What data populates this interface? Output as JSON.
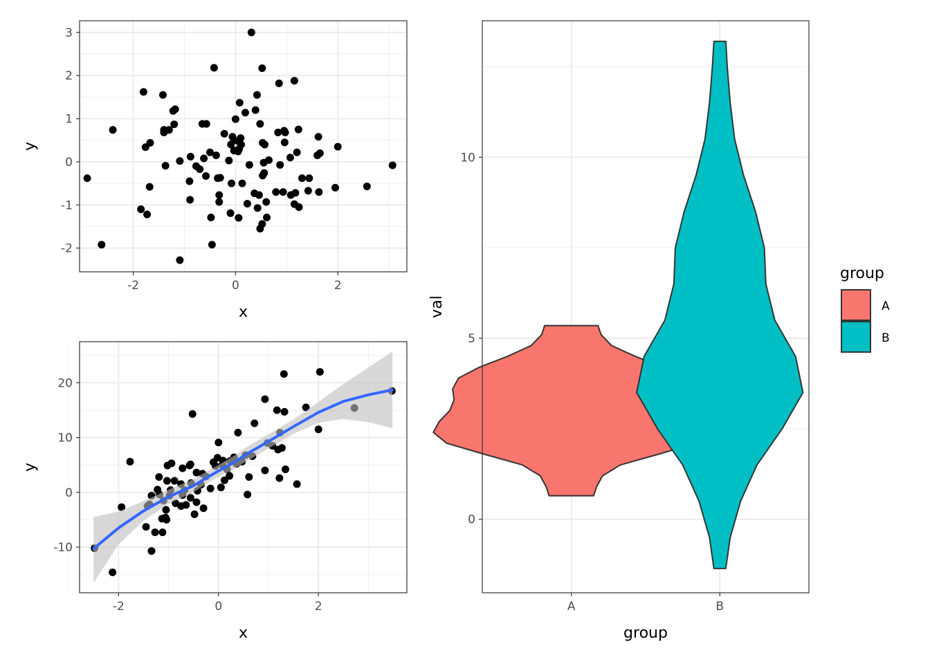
{
  "chart_data": [
    {
      "type": "scatter",
      "xlabel": "x",
      "ylabel": "y",
      "xlim": [
        -3.05,
        3.35
      ],
      "ylim": [
        -2.55,
        3.27
      ],
      "x_ticks": [
        -2,
        0,
        2
      ],
      "y_ticks": [
        -2,
        -1,
        0,
        1,
        2,
        3
      ],
      "x_tick_labels": [
        "-2",
        "0",
        "2"
      ],
      "y_tick_labels": [
        "-2",
        "-1",
        "0",
        "1",
        "2",
        "3"
      ],
      "grid": true,
      "point_color": "#000000",
      "points": [
        [
          0.31,
          3.0
        ],
        [
          -0.42,
          2.18
        ],
        [
          0.52,
          2.17
        ],
        [
          1.15,
          1.88
        ],
        [
          0.85,
          1.82
        ],
        [
          -1.8,
          1.62
        ],
        [
          -1.42,
          1.55
        ],
        [
          0.42,
          1.55
        ],
        [
          0.08,
          1.37
        ],
        [
          -1.18,
          1.22
        ],
        [
          -1.22,
          1.18
        ],
        [
          0.39,
          1.2
        ],
        [
          0.19,
          1.14
        ],
        [
          0.0,
          0.99
        ],
        [
          0.48,
          0.88
        ],
        [
          -0.65,
          0.88
        ],
        [
          -0.57,
          0.88
        ],
        [
          -1.2,
          0.87
        ],
        [
          -2.4,
          0.74
        ],
        [
          -1.4,
          0.74
        ],
        [
          -1.3,
          0.74
        ],
        [
          1.23,
          0.75
        ],
        [
          0.95,
          0.72
        ],
        [
          0.97,
          0.68
        ],
        [
          -1.4,
          0.68
        ],
        [
          -0.22,
          0.65
        ],
        [
          0.83,
          0.68
        ],
        [
          -0.06,
          0.58
        ],
        [
          0.1,
          0.55
        ],
        [
          1.62,
          0.58
        ],
        [
          -0.03,
          0.5
        ],
        [
          0.05,
          0.48
        ],
        [
          -1.67,
          0.44
        ],
        [
          0.53,
          0.44
        ],
        [
          0.96,
          0.45
        ],
        [
          -0.09,
          0.4
        ],
        [
          0.11,
          0.4
        ],
        [
          -1.76,
          0.34
        ],
        [
          0.07,
          0.3
        ],
        [
          0.57,
          0.4
        ],
        [
          2.0,
          0.35
        ],
        [
          -0.03,
          0.26
        ],
        [
          0.05,
          0.24
        ],
        [
          -0.5,
          0.22
        ],
        [
          1.2,
          0.22
        ],
        [
          1.65,
          0.2
        ],
        [
          1.6,
          0.15
        ],
        [
          -0.38,
          0.15
        ],
        [
          1.07,
          0.1
        ],
        [
          -0.88,
          0.12
        ],
        [
          -0.62,
          0.08
        ],
        [
          0.65,
          0.04
        ],
        [
          -1.09,
          0.02
        ],
        [
          -0.13,
          0.03
        ],
        [
          0.55,
          -0.02
        ],
        [
          0.27,
          -0.07
        ],
        [
          0.87,
          -0.07
        ],
        [
          3.07,
          -0.08
        ],
        [
          -1.37,
          -0.09
        ],
        [
          -0.77,
          -0.1
        ],
        [
          -0.7,
          -0.17
        ],
        [
          1.95,
          -0.6
        ],
        [
          -2.9,
          -0.38
        ],
        [
          -0.3,
          -0.37
        ],
        [
          -0.58,
          -0.33
        ],
        [
          0.53,
          -0.32
        ],
        [
          0.56,
          -0.26
        ],
        [
          -0.9,
          -0.45
        ],
        [
          -0.35,
          -0.38
        ],
        [
          -0.08,
          -0.5
        ],
        [
          0.13,
          -0.5
        ],
        [
          -1.68,
          -0.58
        ],
        [
          2.57,
          -0.57
        ],
        [
          1.3,
          -0.38
        ],
        [
          1.44,
          -0.38
        ],
        [
          1.42,
          -0.67
        ],
        [
          1.63,
          -0.7
        ],
        [
          0.79,
          -0.7
        ],
        [
          0.93,
          -0.7
        ],
        [
          0.37,
          -0.73
        ],
        [
          1.17,
          -0.72
        ],
        [
          1.08,
          -0.77
        ],
        [
          0.46,
          -0.77
        ],
        [
          -0.32,
          -0.77
        ],
        [
          -0.89,
          -0.88
        ],
        [
          -0.32,
          -0.93
        ],
        [
          0.6,
          -0.93
        ],
        [
          1.15,
          -0.98
        ],
        [
          1.24,
          -1.05
        ],
        [
          0.23,
          -0.97
        ],
        [
          0.43,
          -1.07
        ],
        [
          -1.85,
          -1.1
        ],
        [
          -0.1,
          -1.19
        ],
        [
          -1.73,
          -1.22
        ],
        [
          0.06,
          -1.3
        ],
        [
          -0.48,
          -1.29
        ],
        [
          0.61,
          -1.29
        ],
        [
          0.52,
          -1.44
        ],
        [
          0.48,
          -1.55
        ],
        [
          -2.62,
          -1.92
        ],
        [
          -0.46,
          -1.92
        ],
        [
          -1.09,
          -2.28
        ]
      ]
    },
    {
      "type": "scatter",
      "xlabel": "x",
      "ylabel": "y",
      "xlim": [
        -2.78,
        3.77
      ],
      "ylim": [
        -18.33,
        27.5
      ],
      "x_ticks": [
        -2,
        0,
        2
      ],
      "y_ticks": [
        -10,
        0,
        10,
        20
      ],
      "x_tick_labels": [
        "-2",
        "0",
        "2"
      ],
      "y_tick_labels": [
        "-10",
        "0",
        "10",
        "20"
      ],
      "grid": true,
      "point_color": "#000000",
      "smooth": {
        "color": "#3366ff",
        "band_color": "#bebebe",
        "fit": [
          [
            -2.5,
            -10.3
          ],
          [
            -2.0,
            -6.5
          ],
          [
            -1.5,
            -3.4
          ],
          [
            -1.0,
            -0.8
          ],
          [
            -0.5,
            1.2
          ],
          [
            -0.25,
            2.6
          ],
          [
            0.0,
            3.9
          ],
          [
            0.3,
            5.4
          ],
          [
            0.6,
            7.2
          ],
          [
            1.0,
            9.3
          ],
          [
            1.5,
            12.0
          ],
          [
            2.0,
            14.6
          ],
          [
            2.5,
            16.6
          ],
          [
            3.0,
            17.8
          ],
          [
            3.48,
            18.7
          ]
        ],
        "band_upper": [
          [
            -2.5,
            -4.5
          ],
          [
            -2.0,
            -3.5
          ],
          [
            -1.5,
            -1.6
          ],
          [
            -1.0,
            0.5
          ],
          [
            -0.5,
            2.4
          ],
          [
            -0.25,
            3.7
          ],
          [
            0.0,
            5.0
          ],
          [
            0.3,
            6.6
          ],
          [
            0.6,
            8.5
          ],
          [
            1.0,
            10.6
          ],
          [
            1.5,
            13.3
          ],
          [
            2.0,
            16.5
          ],
          [
            2.5,
            19.8
          ],
          [
            3.0,
            22.8
          ],
          [
            3.48,
            25.7
          ]
        ],
        "band_lower": [
          [
            -2.5,
            -16.5
          ],
          [
            -2.0,
            -9.5
          ],
          [
            -1.5,
            -5.2
          ],
          [
            -1.0,
            -2.1
          ],
          [
            -0.5,
            0.0
          ],
          [
            -0.25,
            1.5
          ],
          [
            0.0,
            2.8
          ],
          [
            0.3,
            4.2
          ],
          [
            0.6,
            5.9
          ],
          [
            1.0,
            8.0
          ],
          [
            1.5,
            10.7
          ],
          [
            2.0,
            12.7
          ],
          [
            2.5,
            13.4
          ],
          [
            3.0,
            12.8
          ],
          [
            3.48,
            11.7
          ]
        ]
      },
      "points": [
        [
          2.03,
          22.0
        ],
        [
          1.31,
          21.6
        ],
        [
          1.75,
          15.5
        ],
        [
          1.32,
          14.7
        ],
        [
          1.17,
          15.0
        ],
        [
          2.72,
          15.4
        ],
        [
          3.47,
          18.5
        ],
        [
          0.93,
          17.0
        ],
        [
          -0.52,
          14.3
        ],
        [
          0.72,
          12.6
        ],
        [
          2.0,
          11.5
        ],
        [
          0.39,
          10.9
        ],
        [
          1.23,
          10.9
        ],
        [
          0.98,
          9.0
        ],
        [
          0.0,
          9.1
        ],
        [
          1.08,
          8.5
        ],
        [
          1.19,
          7.8
        ],
        [
          1.27,
          8.1
        ],
        [
          0.54,
          6.8
        ],
        [
          0.68,
          6.6
        ],
        [
          0.31,
          6.4
        ],
        [
          0.23,
          5.7
        ],
        [
          0.09,
          5.8
        ],
        [
          0.08,
          5.0
        ],
        [
          -0.02,
          6.3
        ],
        [
          -0.1,
          5.5
        ],
        [
          -0.06,
          4.8
        ],
        [
          0.17,
          4.2
        ],
        [
          0.36,
          5.2
        ],
        [
          0.47,
          5.6
        ],
        [
          -1.77,
          5.6
        ],
        [
          -0.94,
          5.3
        ],
        [
          -1.02,
          4.9
        ],
        [
          -0.58,
          4.9
        ],
        [
          -0.56,
          5.1
        ],
        [
          -0.72,
          4.4
        ],
        [
          -0.44,
          3.6
        ],
        [
          -0.32,
          3.4
        ],
        [
          -0.25,
          2.9
        ],
        [
          1.34,
          4.2
        ],
        [
          0.93,
          4.0
        ],
        [
          0.22,
          3.0
        ],
        [
          0.61,
          2.8
        ],
        [
          0.12,
          2.2
        ],
        [
          1.22,
          2.6
        ],
        [
          -1.19,
          2.8
        ],
        [
          -1.03,
          2.1
        ],
        [
          -0.88,
          2.1
        ],
        [
          -0.75,
          1.5
        ],
        [
          -0.55,
          1.7
        ],
        [
          -0.35,
          1.4
        ],
        [
          -0.16,
          0.7
        ],
        [
          0.05,
          0.9
        ],
        [
          -1.22,
          0.5
        ],
        [
          -0.96,
          0.4
        ],
        [
          -0.68,
          0.4
        ],
        [
          -0.42,
          0.3
        ],
        [
          1.57,
          1.5
        ],
        [
          0.58,
          -0.4
        ],
        [
          -1.34,
          -0.6
        ],
        [
          -1.18,
          -0.4
        ],
        [
          -0.98,
          -0.6
        ],
        [
          -0.72,
          -0.5
        ],
        [
          -0.56,
          -1.0
        ],
        [
          -1.1,
          -1.5
        ],
        [
          -0.86,
          -2.0
        ],
        [
          -0.75,
          -2.5
        ],
        [
          -0.65,
          -2.3
        ],
        [
          -0.44,
          -1.8
        ],
        [
          -1.38,
          -2.2
        ],
        [
          -1.42,
          -2.5
        ],
        [
          -1.94,
          -2.7
        ],
        [
          -1.05,
          -3.2
        ],
        [
          -0.3,
          -2.9
        ],
        [
          -0.48,
          -4.0
        ],
        [
          -1.06,
          -4.6
        ],
        [
          -1.13,
          -4.8
        ],
        [
          -1.04,
          -5.0
        ],
        [
          -1.45,
          -6.3
        ],
        [
          -1.27,
          -7.3
        ],
        [
          -1.12,
          -7.3
        ],
        [
          -2.48,
          -10.2
        ],
        [
          -1.34,
          -10.7
        ],
        [
          -2.12,
          -14.6
        ]
      ]
    },
    {
      "type": "violin",
      "xlabel": "group",
      "ylabel": "val",
      "categories": [
        "A",
        "B"
      ],
      "ylim": [
        -2.03,
        13.77
      ],
      "y_ticks": [
        0,
        5,
        10
      ],
      "y_tick_labels": [
        "0",
        "5",
        "10"
      ],
      "grid": true,
      "legend": {
        "title": "group",
        "position": "right",
        "entries": [
          {
            "label": "A",
            "color": "#f8766d"
          },
          {
            "label": "B",
            "color": "#00bfc4"
          }
        ]
      },
      "series": [
        {
          "name": "A",
          "color": "#f8766d",
          "profile": [
            [
              0.65,
              0.15
            ],
            [
              0.9,
              0.17
            ],
            [
              1.2,
              0.21
            ],
            [
              1.5,
              0.33
            ],
            [
              1.8,
              0.59
            ],
            [
              2.1,
              0.84
            ],
            [
              2.4,
              0.93
            ],
            [
              2.7,
              0.89
            ],
            [
              3.0,
              0.82
            ],
            [
              3.3,
              0.79
            ],
            [
              3.6,
              0.8
            ],
            [
              3.9,
              0.76
            ],
            [
              4.2,
              0.62
            ],
            [
              4.5,
              0.43
            ],
            [
              4.8,
              0.27
            ],
            [
              5.1,
              0.2
            ],
            [
              5.35,
              0.18
            ]
          ]
        },
        {
          "name": "B",
          "color": "#00bfc4",
          "profile": [
            [
              -1.36,
              0.04
            ],
            [
              -0.5,
              0.07
            ],
            [
              0.5,
              0.14
            ],
            [
              1.5,
              0.25
            ],
            [
              2.5,
              0.42
            ],
            [
              3.5,
              0.56
            ],
            [
              4.5,
              0.51
            ],
            [
              5.5,
              0.37
            ],
            [
              6.5,
              0.31
            ],
            [
              7.5,
              0.3
            ],
            [
              8.5,
              0.24
            ],
            [
              9.5,
              0.16
            ],
            [
              10.5,
              0.1
            ],
            [
              11.5,
              0.07
            ],
            [
              12.5,
              0.05
            ],
            [
              13.2,
              0.04
            ]
          ]
        }
      ]
    }
  ]
}
